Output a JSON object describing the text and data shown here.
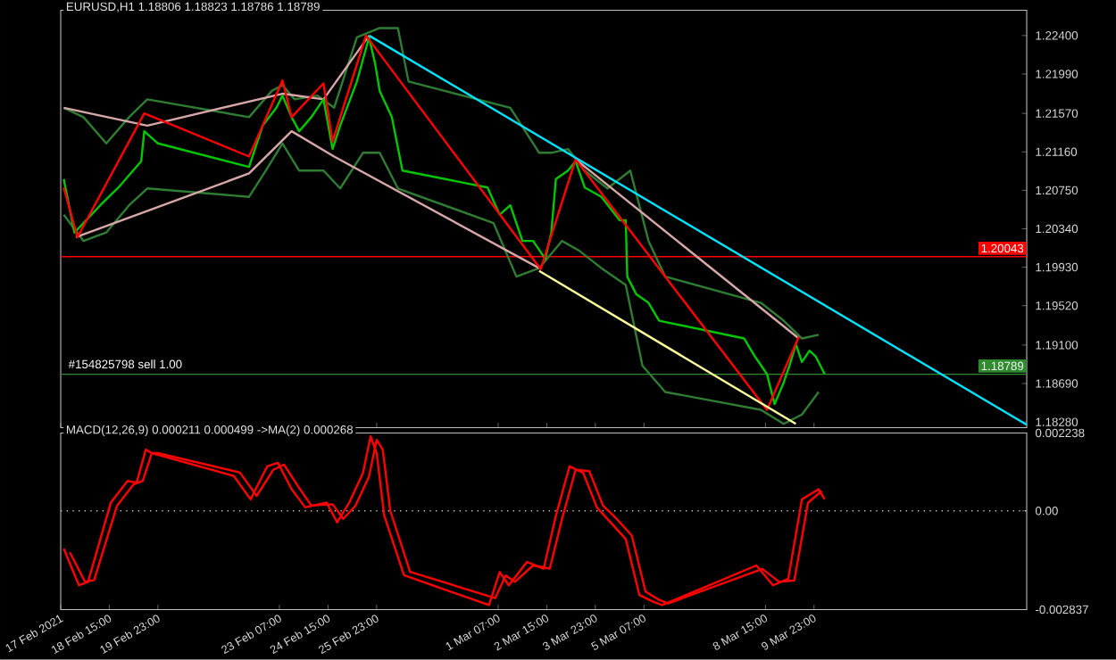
{
  "chart_data": [
    {
      "type": "line",
      "title": "EURUSD,H1  1.18806 1.18823 1.18786 1.18789",
      "xlim": [
        "2021-02-17T07:00",
        "2021-03-15T19:00"
      ],
      "ylim": [
        1.1822,
        1.2267
      ],
      "tick_labels": "y",
      "marker": "none",
      "xticks": [
        {
          "value": "2021-02-17T07:00",
          "label": null
        },
        {
          "value": "2021-02-18T15:00",
          "label": null
        },
        {
          "value": "2021-02-19T23:00",
          "label": null
        },
        {
          "value": "2021-02-23T07:00",
          "label": null
        },
        {
          "value": "2021-02-24T15:00",
          "label": null
        },
        {
          "value": "2021-02-25T23:00",
          "label": null
        },
        {
          "value": "2021-03-01T07:00",
          "label": null
        },
        {
          "value": "2021-03-02T15:00",
          "label": null
        },
        {
          "value": "2021-03-03T23:00",
          "label": null
        },
        {
          "value": "2021-03-05T07:00",
          "label": null
        },
        {
          "value": "2021-03-08T15:00",
          "label": null
        },
        {
          "value": "2021-03-09T23:00",
          "label": null
        }
      ],
      "yticks": [
        {
          "value": 1.224,
          "label": "1.22400"
        },
        {
          "value": 1.2199,
          "label": "1.21990"
        },
        {
          "value": 1.2157,
          "label": "1.21570"
        },
        {
          "value": 1.2116,
          "label": "1.21160"
        },
        {
          "value": 1.2075,
          "label": "1.20750"
        },
        {
          "value": 1.2034,
          "label": "1.20340"
        },
        {
          "value": 1.1993,
          "label": "1.19930"
        },
        {
          "value": 1.1952,
          "label": "1.19520"
        },
        {
          "value": 1.191,
          "label": "1.19100"
        },
        {
          "value": 1.1869,
          "label": "1.18690"
        },
        {
          "value": 1.1828,
          "label": "1.18280"
        }
      ],
      "ref_lines": [
        {
          "axis": "y",
          "value": 1.20043,
          "label": "1.20043",
          "color": "#ff0000",
          "line_style": "solid"
        },
        {
          "axis": "y",
          "value": 1.18789,
          "label": "1.18789",
          "color": "#2e8b2e",
          "line_style": "solid"
        }
      ],
      "annotations": [
        "#154825798 sell 1.00"
      ],
      "series": [
        {
          "color": "#2e7d32",
          "x": [
            "2021-02-17T09:00",
            "2021-02-17T22:00",
            "2021-02-18T13:00",
            "2021-02-19T04:00",
            "2021-02-19T16:00",
            "2021-02-22T11:00",
            "2021-02-23T02:00",
            "2021-02-23T09:00",
            "2021-02-23T17:00",
            "2021-02-24T08:00",
            "2021-02-24T19:00",
            "2021-02-25T10:00",
            "2021-02-26T01:00",
            "2021-02-26T13:00",
            "2021-02-26T20:00",
            "2021-03-01T15:00",
            "2021-03-02T10:00",
            "2021-03-02T18:00",
            "2021-03-03T05:00",
            "2021-03-03T16:00",
            "2021-03-04T07:00",
            "2021-03-04T22:00",
            "2021-03-05T10:00",
            "2021-03-05T21:00",
            "2021-03-08T12:00",
            "2021-03-09T03:00",
            "2021-03-09T15:00",
            "2021-03-10T02:00"
          ],
          "values": [
            1.2163,
            1.2153,
            1.2125,
            1.2153,
            1.2172,
            1.2153,
            1.2181,
            1.2187,
            1.2172,
            1.2176,
            1.2163,
            1.2238,
            1.2248,
            1.2248,
            1.2191,
            1.2163,
            1.2115,
            1.2115,
            1.2119,
            1.2096,
            1.2077,
            1.2096,
            1.2021,
            1.1983,
            1.1955,
            1.1936,
            1.1917,
            1.1921
          ]
        },
        {
          "color": "#2e7d32",
          "x": [
            "2021-02-17T09:00",
            "2021-02-17T22:00",
            "2021-02-18T13:00",
            "2021-02-19T04:00",
            "2021-02-19T16:00",
            "2021-02-22T11:00",
            "2021-02-22T22:00",
            "2021-02-23T09:00",
            "2021-02-23T20:00",
            "2021-02-24T12:00",
            "2021-02-24T23:00",
            "2021-02-25T14:00",
            "2021-02-26T01:00",
            "2021-02-26T13:00",
            "2021-03-01T04:00",
            "2021-03-01T19:00",
            "2021-03-02T10:00",
            "2021-03-03T01:00",
            "2021-03-03T12:00",
            "2021-03-04T03:00",
            "2021-03-04T19:00",
            "2021-03-05T06:00",
            "2021-03-05T21:00",
            "2021-03-08T12:00",
            "2021-03-09T03:00",
            "2021-03-09T15:00",
            "2021-03-10T02:00"
          ],
          "values": [
            1.2049,
            1.2021,
            1.203,
            1.2059,
            1.2077,
            1.2068,
            1.2096,
            1.2125,
            1.2096,
            1.2096,
            1.2077,
            1.2115,
            1.2115,
            1.2077,
            1.204,
            1.1983,
            1.1992,
            1.2021,
            1.2011,
            1.1992,
            1.1974,
            1.1888,
            1.186,
            1.1841,
            1.1826,
            1.1836,
            1.186
          ]
        },
        {
          "color": "#d8a8a8",
          "x": [
            "2021-02-17T09:00",
            "2021-02-19T16:00",
            "2021-02-23T09:00",
            "2021-02-24T12:00",
            "2021-02-25T18:00"
          ],
          "values": [
            1.2163,
            1.2144,
            1.2178,
            1.2172,
            1.224
          ]
        },
        {
          "color": "#d8a8a8",
          "x": [
            "2021-02-17T17:00",
            "2021-02-22T11:00",
            "2021-02-23T15:00",
            "2021-02-24T19:00",
            "2021-03-02T10:00"
          ],
          "values": [
            1.2025,
            1.2093,
            1.2138,
            1.2111,
            1.1992
          ]
        },
        {
          "color": "#d8a8a8",
          "x": [
            "2021-03-03T10:00",
            "2021-03-09T13:00"
          ],
          "values": [
            1.2108,
            1.1917
          ]
        },
        {
          "color": "#00c800",
          "x": [
            "2021-02-17T09:00",
            "2021-02-17T16:00",
            "2021-02-17T22:00",
            "2021-02-18T09:00",
            "2021-02-18T21:00",
            "2021-02-19T12:00",
            "2021-02-19T14:00",
            "2021-02-19T23:00",
            "2021-02-22T11:00",
            "2021-02-22T20:00",
            "2021-02-23T05:00",
            "2021-02-23T09:00",
            "2021-02-23T15:00",
            "2021-02-23T20:00",
            "2021-02-24T04:00",
            "2021-02-24T12:00",
            "2021-02-24T18:00",
            "2021-02-24T23:00",
            "2021-02-25T10:00",
            "2021-02-25T18:00",
            "2021-02-25T22:00",
            "2021-02-26T01:00",
            "2021-02-26T09:00",
            "2021-02-26T16:00",
            "2021-03-01T00:00",
            "2021-03-01T08:00",
            "2021-03-01T15:00",
            "2021-03-01T23:00",
            "2021-03-02T06:00",
            "2021-03-02T14:00",
            "2021-03-02T18:00",
            "2021-03-02T21:00",
            "2021-03-03T05:00",
            "2021-03-03T10:00",
            "2021-03-03T16:00",
            "2021-03-04T03:00",
            "2021-03-04T15:00",
            "2021-03-04T19:00",
            "2021-03-04T20:00",
            "2021-03-05T02:00",
            "2021-03-05T10:00",
            "2021-03-05T17:00",
            "2021-03-08T01:00",
            "2021-03-08T08:00",
            "2021-03-08T16:00",
            "2021-03-08T21:00",
            "2021-03-09T03:00",
            "2021-03-09T07:00",
            "2021-03-09T11:00",
            "2021-03-09T15:00",
            "2021-03-09T20:00",
            "2021-03-10T00:00",
            "2021-03-10T06:00"
          ],
          "values": [
            1.2087,
            1.203,
            1.204,
            1.2059,
            1.2078,
            1.2106,
            1.2138,
            1.2125,
            1.21,
            1.2144,
            1.2163,
            1.2176,
            1.2153,
            1.2138,
            1.2153,
            1.2172,
            1.2119,
            1.2144,
            1.2191,
            1.2238,
            1.221,
            1.2181,
            1.2153,
            1.2096,
            1.2078,
            1.2049,
            1.2059,
            1.2021,
            1.2021,
            1.2002,
            1.203,
            1.2087,
            1.2096,
            1.2106,
            1.2078,
            1.2068,
            1.2043,
            1.2043,
            1.1983,
            1.1964,
            1.1955,
            1.1936,
            1.1917,
            1.1898,
            1.1879,
            1.1847,
            1.187,
            1.1889,
            1.1911,
            1.1892,
            1.1904,
            1.1898,
            1.1879
          ]
        },
        {
          "color": "#ff0000",
          "x": [
            "2021-02-17T09:00",
            "2021-02-17T18:00",
            "2021-02-19T14:00",
            "2021-02-22T11:00",
            "2021-02-23T09:00",
            "2021-02-23T15:00",
            "2021-02-24T12:00",
            "2021-02-24T18:00",
            "2021-02-25T16:00",
            "2021-03-02T11:00",
            "2021-03-03T10:00",
            "2021-03-08T16:00",
            "2021-03-09T13:00"
          ],
          "values": [
            1.2078,
            1.2025,
            1.2157,
            1.2111,
            1.2192,
            1.2153,
            1.2189,
            1.2127,
            1.224,
            1.1991,
            1.2108,
            1.1841,
            1.1919
          ]
        },
        {
          "color": "#00e5ff",
          "x": [
            "2021-02-25T18:00",
            "2021-03-15T19:00"
          ],
          "values": [
            1.224,
            1.1825
          ]
        },
        {
          "color": "#ffff99",
          "x": [
            "2021-03-02T10:00",
            "2021-03-09T11:00"
          ],
          "values": [
            1.1989,
            1.1826
          ]
        }
      ]
    },
    {
      "type": "line",
      "title": "MACD(12,26,9) 0.000211 0.000499  ->MA(2) 0.000268",
      "xlim": [
        "2021-02-17T07:00",
        "2021-03-15T19:00"
      ],
      "ylim": [
        -0.002837,
        0.002238
      ],
      "marker": "none",
      "xticks": [
        {
          "value": "2021-02-17T07:00",
          "label": "17 Feb 2021"
        },
        {
          "value": "2021-02-18T15:00",
          "label": "18 Feb 15:00"
        },
        {
          "value": "2021-02-19T23:00",
          "label": "19 Feb 23:00"
        },
        {
          "value": "2021-02-23T07:00",
          "label": "23 Feb 07:00"
        },
        {
          "value": "2021-02-24T15:00",
          "label": "24 Feb 15:00"
        },
        {
          "value": "2021-02-25T23:00",
          "label": "25 Feb 23:00"
        },
        {
          "value": "2021-03-01T07:00",
          "label": "1 Mar 07:00"
        },
        {
          "value": "2021-03-02T15:00",
          "label": "2 Mar 15:00"
        },
        {
          "value": "2021-03-03T23:00",
          "label": "3 Mar 23:00"
        },
        {
          "value": "2021-03-05T07:00",
          "label": "5 Mar 07:00"
        },
        {
          "value": "2021-03-08T15:00",
          "label": "8 Mar 15:00"
        },
        {
          "value": "2021-03-09T23:00",
          "label": "9 Mar 23:00"
        }
      ],
      "yticks": [
        {
          "value": 0.002238,
          "label": "0.002238"
        },
        {
          "value": 0,
          "label": "0.00"
        },
        {
          "value": -0.002837,
          "label": "-0.002837"
        }
      ],
      "ref_lines": [
        {
          "axis": "y",
          "value": 0,
          "color": "#c0c0c0",
          "line_style": "dotted"
        }
      ],
      "series": [
        {
          "color": "#ff0000",
          "x": [
            "2021-02-17T09:00",
            "2021-02-17T19:00",
            "2021-02-18T01:00",
            "2021-02-18T16:00",
            "2021-02-19T03:00",
            "2021-02-19T09:00",
            "2021-02-19T15:00",
            "2021-02-19T19:00",
            "2021-02-22T01:00",
            "2021-02-22T12:00",
            "2021-02-22T23:00",
            "2021-02-23T06:00",
            "2021-02-23T15:00",
            "2021-02-24T00:00",
            "2021-02-24T14:00",
            "2021-02-24T21:00",
            "2021-02-25T05:00",
            "2021-02-25T14:00",
            "2021-02-25T19:00",
            "2021-02-25T23:00",
            "2021-02-26T04:00",
            "2021-02-26T17:00",
            "2021-03-01T01:00",
            "2021-03-01T08:00",
            "2021-03-01T14:00",
            "2021-03-02T02:00",
            "2021-03-02T13:00",
            "2021-03-02T21:00",
            "2021-03-03T06:00",
            "2021-03-03T15:00",
            "2021-03-04T00:00",
            "2021-03-04T09:00",
            "2021-03-04T19:00",
            "2021-03-05T04:00",
            "2021-03-05T13:00",
            "2021-03-05T19:00",
            "2021-03-08T09:00",
            "2021-03-08T20:00",
            "2021-03-09T06:00",
            "2021-03-09T15:00",
            "2021-03-10T02:00",
            "2021-03-10T06:00"
          ],
          "values": [
            -0.00109,
            -0.00214,
            -0.00204,
            0.00024,
            0.00086,
            0.00081,
            0.00176,
            0.00166,
            0.001,
            0.00033,
            0.00128,
            0.00138,
            0.00062,
            0.0001,
            0.00024,
            -0.00033,
            0.00024,
            0.00109,
            0.00214,
            0.00166,
            -0.00014,
            -0.00185,
            -0.00271,
            -0.00176,
            -0.00214,
            -0.00147,
            -0.00166,
            -0.00014,
            0.00128,
            0.00109,
            0.0001,
            -0.00033,
            -0.00081,
            -0.00242,
            -0.00261,
            -0.00271,
            -0.00157,
            -0.00214,
            -0.00195,
            0.00033,
            0.00062,
            0.00033
          ]
        },
        {
          "color": "#ff0000",
          "x": [
            "2021-02-17T13:00",
            "2021-02-17T23:00",
            "2021-02-18T05:00",
            "2021-02-18T20:00",
            "2021-02-19T07:00",
            "2021-02-19T13:00",
            "2021-02-19T19:00",
            "2021-02-19T23:00",
            "2021-02-22T05:00",
            "2021-02-22T16:00",
            "2021-02-23T03:00",
            "2021-02-23T10:00",
            "2021-02-23T19:00",
            "2021-02-24T04:00",
            "2021-02-24T18:00",
            "2021-02-25T01:00",
            "2021-02-25T09:00",
            "2021-02-25T18:00",
            "2021-02-25T23:00",
            "2021-02-26T03:00",
            "2021-02-26T08:00",
            "2021-02-26T21:00",
            "2021-03-01T05:00",
            "2021-03-01T12:00",
            "2021-03-01T18:00",
            "2021-03-02T06:00",
            "2021-03-02T17:00",
            "2021-03-03T01:00",
            "2021-03-03T10:00",
            "2021-03-03T19:00",
            "2021-03-04T04:00",
            "2021-03-04T13:00",
            "2021-03-04T23:00",
            "2021-03-05T08:00",
            "2021-03-05T17:00",
            "2021-03-05T23:00",
            "2021-03-08T13:00",
            "2021-03-09T00:00",
            "2021-03-09T10:00",
            "2021-03-09T19:00",
            "2021-03-10T04:00"
          ],
          "values": [
            -0.00119,
            -0.00204,
            -0.00199,
            0.00014,
            0.00076,
            0.00086,
            0.00166,
            0.00166,
            0.0011,
            0.00043,
            0.00118,
            0.00133,
            0.00072,
            0.00015,
            0.00019,
            -0.00023,
            0.00014,
            0.00099,
            0.00204,
            0.00176,
            0,
            -0.00175,
            -0.00251,
            -0.00186,
            -0.00204,
            -0.00157,
            -0.00166,
            -0.00024,
            0.00118,
            0.00114,
            0.00015,
            -0.00023,
            -0.00071,
            -0.00232,
            -0.00256,
            -0.00266,
            -0.00167,
            -0.00204,
            -0.002,
            0.00023,
            0.00057
          ]
        }
      ]
    }
  ]
}
